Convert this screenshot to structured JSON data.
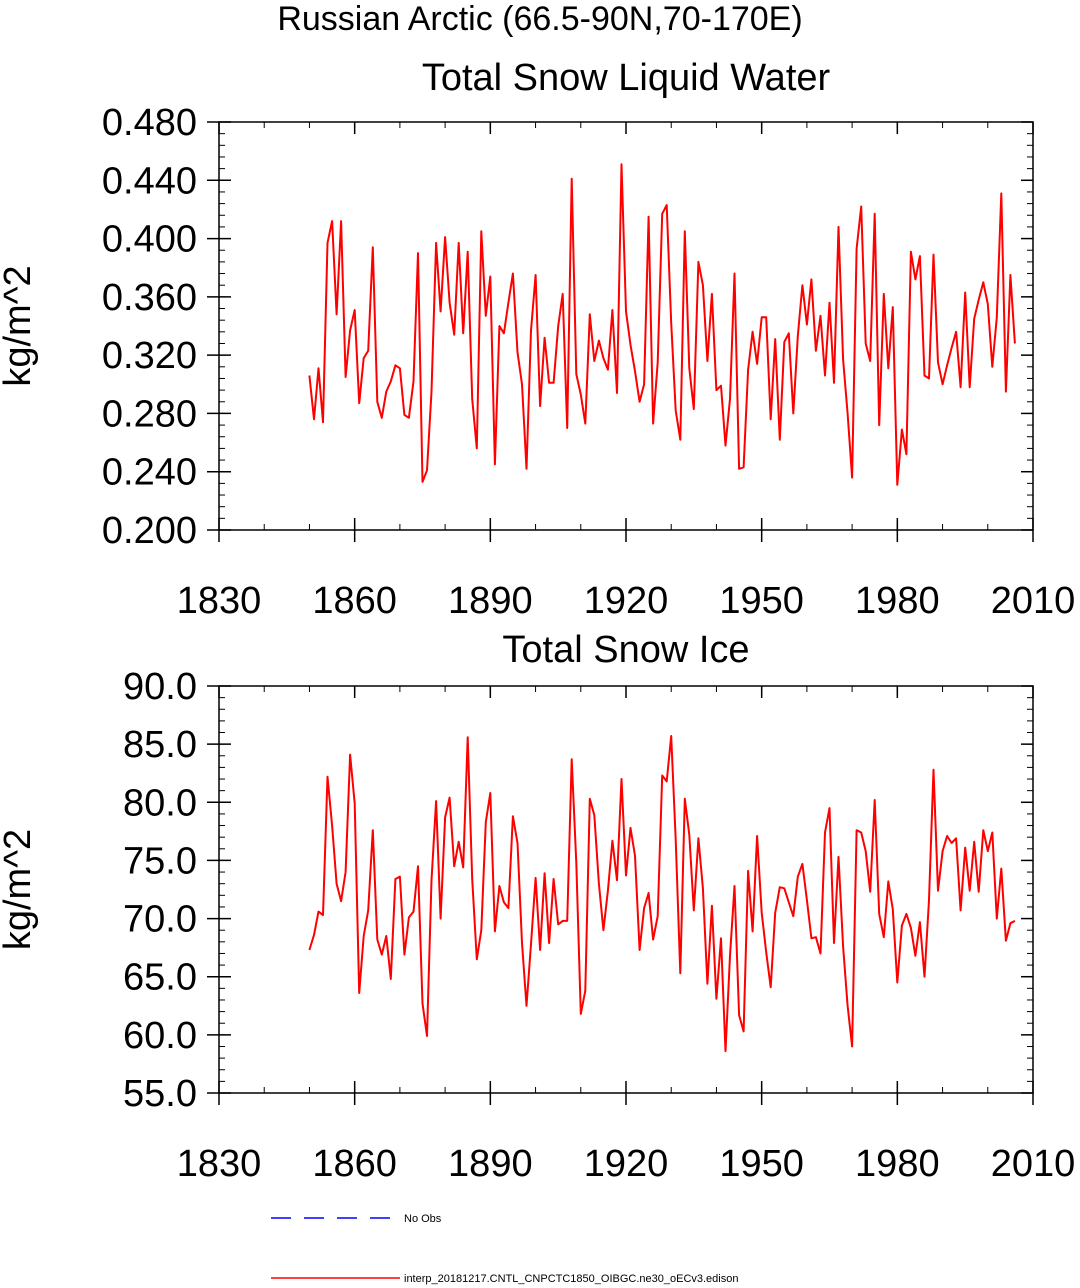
{
  "figure": {
    "title": "Russian Arctic (66.5-90N,70-170E)"
  },
  "chart_data": [
    {
      "type": "line",
      "title": "Total Snow Liquid Water",
      "xlabel": "",
      "ylabel": "kg/m^2",
      "xlim": [
        1830,
        2010
      ],
      "ylim": [
        0.2,
        0.48
      ],
      "x_ticks": [
        "1830",
        "1860",
        "1890",
        "1920",
        "1950",
        "1980",
        "2010"
      ],
      "y_ticks": [
        "0.200",
        "0.240",
        "0.280",
        "0.320",
        "0.360",
        "0.400",
        "0.440",
        "0.480"
      ],
      "grid": false,
      "series": [
        {
          "color": "#ff0000",
          "x_start": 1850,
          "x_step": 1,
          "values": [
            0.306,
            0.276,
            0.311,
            0.274,
            0.397,
            0.412,
            0.348,
            0.412,
            0.305,
            0.337,
            0.351,
            0.287,
            0.318,
            0.323,
            0.394,
            0.288,
            0.277,
            0.295,
            0.302,
            0.313,
            0.311,
            0.279,
            0.277,
            0.302,
            0.39,
            0.233,
            0.241,
            0.295,
            0.397,
            0.35,
            0.401,
            0.356,
            0.334,
            0.397,
            0.335,
            0.391,
            0.29,
            0.256,
            0.405,
            0.347,
            0.374,
            0.245,
            0.34,
            0.335,
            0.356,
            0.376,
            0.322,
            0.3,
            0.242,
            0.337,
            0.375,
            0.285,
            0.332,
            0.301,
            0.301,
            0.34,
            0.362,
            0.27,
            0.441,
            0.307,
            0.293,
            0.273,
            0.348,
            0.316,
            0.33,
            0.318,
            0.31,
            0.351,
            0.294,
            0.451,
            0.35,
            0.327,
            0.309,
            0.288,
            0.3,
            0.415,
            0.273,
            0.315,
            0.417,
            0.423,
            0.342,
            0.282,
            0.262,
            0.405,
            0.311,
            0.283,
            0.384,
            0.368,
            0.316,
            0.362,
            0.296,
            0.299,
            0.258,
            0.29,
            0.376,
            0.242,
            0.243,
            0.31,
            0.336,
            0.314,
            0.346,
            0.346,
            0.276,
            0.331,
            0.262,
            0.329,
            0.335,
            0.28,
            0.333,
            0.368,
            0.341,
            0.372,
            0.323,
            0.347,
            0.306,
            0.356,
            0.301,
            0.408,
            0.317,
            0.28,
            0.236,
            0.393,
            0.422,
            0.328,
            0.316,
            0.417,
            0.272,
            0.362,
            0.311,
            0.353,
            0.231,
            0.269,
            0.252,
            0.391,
            0.372,
            0.388,
            0.306,
            0.304,
            0.389,
            0.315,
            0.3,
            0.313,
            0.325,
            0.336,
            0.298,
            0.363,
            0.298,
            0.345,
            0.358,
            0.37,
            0.355,
            0.312,
            0.346,
            0.431,
            0.295,
            0.375,
            0.328
          ]
        }
      ]
    },
    {
      "type": "line",
      "title": "Total Snow Ice",
      "xlabel": "",
      "ylabel": "kg/m^2",
      "xlim": [
        1830,
        2010
      ],
      "ylim": [
        55,
        90
      ],
      "x_ticks": [
        "1830",
        "1860",
        "1890",
        "1920",
        "1950",
        "1980",
        "2010"
      ],
      "y_ticks": [
        "55.0",
        "60.0",
        "65.0",
        "70.0",
        "75.0",
        "80.0",
        "85.0",
        "90.0"
      ],
      "grid": false,
      "series": [
        {
          "color": "#ff0000",
          "x_start": 1850,
          "x_step": 1,
          "values": [
            67.3,
            68.6,
            70.6,
            70.3,
            82.2,
            78.0,
            73.0,
            71.5,
            74.0,
            84.1,
            79.9,
            63.6,
            68.5,
            70.7,
            77.6,
            68.2,
            66.9,
            68.5,
            64.8,
            73.4,
            73.6,
            66.9,
            70.1,
            70.6,
            74.5,
            62.7,
            59.9,
            73.3,
            80.1,
            70.0,
            78.7,
            80.4,
            74.5,
            76.6,
            74.4,
            85.6,
            73.4,
            66.5,
            69.0,
            78.3,
            80.8,
            68.9,
            72.8,
            71.4,
            70.9,
            78.8,
            76.5,
            67.9,
            62.5,
            67.8,
            73.5,
            67.3,
            73.9,
            67.9,
            73.4,
            69.5,
            69.8,
            69.8,
            83.7,
            74.8,
            61.8,
            63.8,
            80.3,
            78.9,
            73.0,
            69.0,
            72.4,
            76.7,
            73.3,
            82.0,
            73.7,
            77.8,
            75.4,
            67.3,
            70.9,
            72.2,
            68.2,
            70.2,
            82.3,
            81.8,
            85.7,
            76.8,
            65.3,
            80.3,
            77.2,
            70.7,
            76.9,
            72.6,
            64.4,
            71.1,
            63.1,
            68.3,
            58.6,
            66.8,
            72.8,
            61.7,
            60.3,
            74.1,
            68.9,
            77.1,
            70.5,
            67.1,
            64.1,
            70.5,
            72.7,
            72.6,
            71.4,
            70.2,
            73.6,
            74.7,
            71.6,
            68.3,
            68.4,
            67.0,
            77.4,
            79.5,
            67.9,
            75.3,
            67.6,
            62.5,
            59.0,
            77.6,
            77.4,
            75.8,
            72.3,
            80.2,
            70.4,
            68.4,
            73.2,
            70.8,
            64.5,
            69.4,
            70.4,
            69.2,
            66.8,
            69.7,
            65.0,
            71.6,
            82.8,
            72.4,
            75.8,
            77.1,
            76.5,
            76.9,
            70.7,
            76.1,
            72.4,
            76.6,
            72.3,
            77.6,
            75.8,
            77.4,
            70.0,
            74.3,
            68.1,
            69.6,
            69.8
          ]
        }
      ]
    }
  ],
  "legend": [
    {
      "label": "No Obs",
      "color": "#0000ff",
      "dash": true
    },
    {
      "label": "interp_20181217.CNTL_CNPCTC1850_OIBGC.ne30_oECv3.edison",
      "color": "#ff0000",
      "dash": false
    }
  ]
}
